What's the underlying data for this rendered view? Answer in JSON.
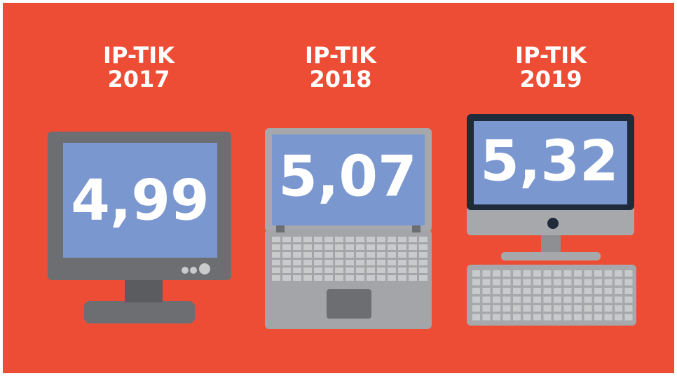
{
  "items": [
    {
      "label": "IP-TIK",
      "year": "2017",
      "value": "4,99"
    },
    {
      "label": "IP-TIK",
      "year": "2018",
      "value": "5,07"
    },
    {
      "label": "IP-TIK",
      "year": "2019",
      "value": "5,32"
    }
  ]
}
